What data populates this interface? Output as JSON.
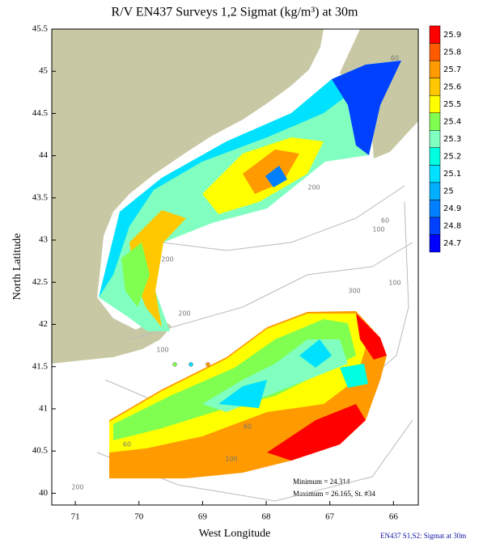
{
  "chart_data": {
    "type": "contour-map",
    "title": "R/V EN437 Surveys 1,2 Sigmat (kg/m³) at 30m",
    "x_label": "West Longitude",
    "y_label": "North Latitude",
    "xlim": [
      71.37,
      65.61
    ],
    "xticks": [
      71,
      70,
      69,
      68,
      67,
      66
    ],
    "ylim": [
      39.86,
      45.5
    ],
    "yticks": [
      40,
      40.5,
      41,
      41.5,
      42,
      42.5,
      43,
      43.5,
      44,
      44.5,
      45,
      45.5
    ],
    "colorbar": {
      "levels": [
        24.7,
        24.8,
        24.9,
        25,
        25.1,
        25.2,
        25.3,
        25.4,
        25.5,
        25.6,
        25.7,
        25.8,
        25.9
      ],
      "colors": [
        "#0000ff",
        "#0040ff",
        "#0080ff",
        "#00b0ff",
        "#00e0ff",
        "#00ffe0",
        "#80ffc0",
        "#80ff50",
        "#ffff00",
        "#ffc800",
        "#ff9a00",
        "#ff5a00",
        "#ff0000"
      ]
    },
    "contour_labels": [
      60,
      200,
      60,
      100,
      200,
      200,
      300,
      100,
      100,
      60,
      100,
      60,
      200
    ],
    "minimum_text": "Minimum = 24.314",
    "maximum_text": "Maximum = 26.165, St. #34",
    "footer": "EN437  S1,S2: Sigmat at 30m",
    "land_color": "#c8c8a4"
  }
}
